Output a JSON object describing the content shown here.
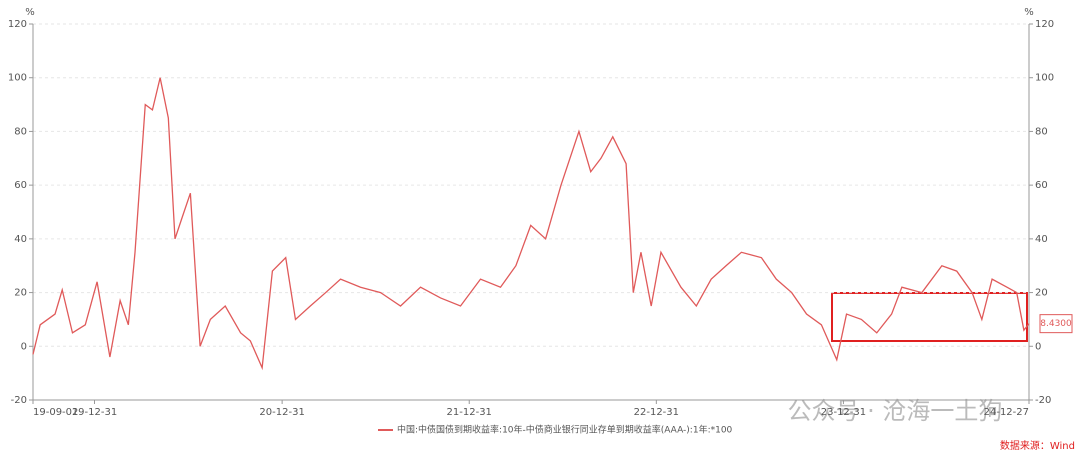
{
  "chart_data": {
    "type": "line",
    "y_unit": "%",
    "y2_unit": "%",
    "x": [
      "19-09-02",
      "19-09-16",
      "19-10-15",
      "19-10-29",
      "19-11-18",
      "19-12-13",
      "20-01-05",
      "20-01-30",
      "20-02-19",
      "20-03-06",
      "20-03-19",
      "20-04-08",
      "20-04-22",
      "20-05-07",
      "20-05-23",
      "20-06-05",
      "20-06-19",
      "20-07-05",
      "20-07-24",
      "20-08-13",
      "20-09-11",
      "20-10-11",
      "20-10-30",
      "20-11-22",
      "20-12-12",
      "21-01-07",
      "21-01-26",
      "21-02-24",
      "21-03-26",
      "21-04-24",
      "21-06-02",
      "21-07-11",
      "21-08-19",
      "21-09-27",
      "21-11-05",
      "21-12-14",
      "22-01-22",
      "22-03-02",
      "22-04-01",
      "22-04-30",
      "22-05-29",
      "22-06-28",
      "22-08-02",
      "22-08-25",
      "22-09-14",
      "22-10-07",
      "22-11-02",
      "22-11-16",
      "22-12-01",
      "22-12-21",
      "23-01-09",
      "23-02-17",
      "23-03-19",
      "23-04-17",
      "23-05-16",
      "23-06-15",
      "23-07-24",
      "23-08-22",
      "23-09-21",
      "23-10-20",
      "23-11-18",
      "23-12-18",
      "24-01-06",
      "24-02-04",
      "24-03-05",
      "24-04-03",
      "24-04-23",
      "24-06-01",
      "24-07-10",
      "24-08-08",
      "24-09-07",
      "24-09-26",
      "24-10-16",
      "24-11-14",
      "24-12-03",
      "24-12-17",
      "24-12-27"
    ],
    "series": [
      {
        "name": "中国:中债国债到期收益率:10年-中债商业银行同业存单到期收益率(AAA-):1年:*100",
        "color": "#e05a5a",
        "values": [
          -3,
          8,
          12,
          21,
          5,
          8,
          24,
          -4,
          17,
          8,
          35,
          90,
          88,
          100,
          85,
          40,
          48,
          57,
          0,
          10,
          15,
          5,
          2,
          -8,
          28,
          33,
          10,
          15,
          20,
          25,
          22,
          20,
          15,
          22,
          18,
          15,
          25,
          22,
          30,
          45,
          40,
          60,
          80,
          65,
          70,
          78,
          68,
          20,
          35,
          15,
          35,
          22,
          15,
          25,
          30,
          35,
          33,
          25,
          20,
          12,
          8,
          -5,
          12,
          10,
          5,
          12,
          22,
          20,
          30,
          28,
          20,
          10,
          25,
          22,
          20,
          6,
          8.43
        ]
      }
    ],
    "end_label": {
      "value": 8.43,
      "label": "8.4300"
    },
    "ylim": [
      -20,
      120
    ],
    "yticks": [
      -20,
      0,
      20,
      40,
      60,
      80,
      100,
      120
    ],
    "y2lim": [
      -20,
      120
    ],
    "y2ticks": [
      -20,
      0,
      20,
      40,
      60,
      80,
      100,
      120
    ],
    "xlim": [
      "19-09-02",
      "24-12-27"
    ],
    "xticks": [
      "19-09-02",
      "19-12-31",
      "20-12-31",
      "21-12-31",
      "22-12-31",
      "23-12-31",
      "24-12-27"
    ],
    "grid": true,
    "source": "数据来源：Wind",
    "watermark": "公众号 · 沧海一土狗"
  }
}
